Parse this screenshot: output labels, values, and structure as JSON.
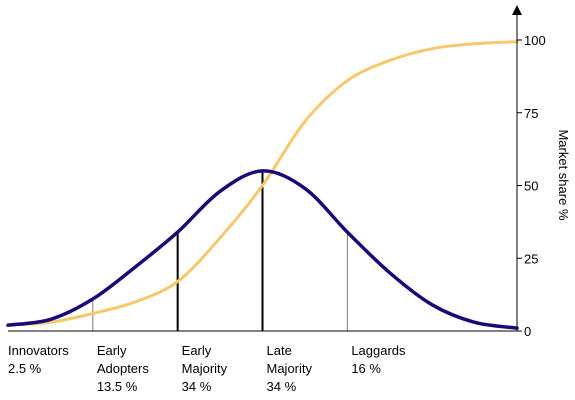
{
  "chart_data": {
    "type": "line",
    "title": "",
    "xlabel": "",
    "ylabel": "Market share %",
    "ylim": [
      0,
      100
    ],
    "yticks": [
      0,
      25,
      50,
      75,
      100
    ],
    "y_axis_position": "right",
    "grid": false,
    "legend": "none",
    "series": [
      {
        "role": "adoption-bell-curve",
        "color": "#1a0a78",
        "x": [
          -3.0,
          -2.5,
          -2.0,
          -1.5,
          -1.0,
          -0.5,
          0.0,
          0.5,
          1.0,
          1.5,
          2.0,
          2.5,
          3.0
        ],
        "values": [
          2,
          4,
          11,
          22,
          34,
          48,
          55,
          49,
          34,
          20,
          9,
          3,
          1
        ]
      },
      {
        "role": "cumulative-market-share",
        "color": "#f5c86c",
        "x": [
          -3.0,
          -2.5,
          -2.0,
          -1.5,
          -1.0,
          -0.5,
          0.0,
          0.5,
          1.0,
          1.5,
          2.0,
          2.5,
          3.0
        ],
        "values": [
          2,
          3,
          6,
          10,
          17,
          32,
          50,
          72,
          86,
          93,
          97,
          98.7,
          99.4
        ]
      }
    ],
    "dividers": [
      {
        "x": -2.0,
        "weight": "thin"
      },
      {
        "x": -1.0,
        "weight": "bold"
      },
      {
        "x": 0.0,
        "weight": "bold"
      },
      {
        "x": 1.0,
        "weight": "thin"
      }
    ],
    "segments": [
      {
        "lines": [
          "Innovators",
          "2.5 %"
        ],
        "x_start": -3.0
      },
      {
        "lines": [
          "Early",
          "Adopters",
          "13.5 %"
        ],
        "x_start": -2.0
      },
      {
        "lines": [
          "Early",
          "Majority",
          "34 %"
        ],
        "x_start": -1.0
      },
      {
        "lines": [
          "Late",
          "Majority",
          "34 %"
        ],
        "x_start": 0.0
      },
      {
        "lines": [
          "Laggards",
          "16 %"
        ],
        "x_start": 1.0
      }
    ]
  }
}
